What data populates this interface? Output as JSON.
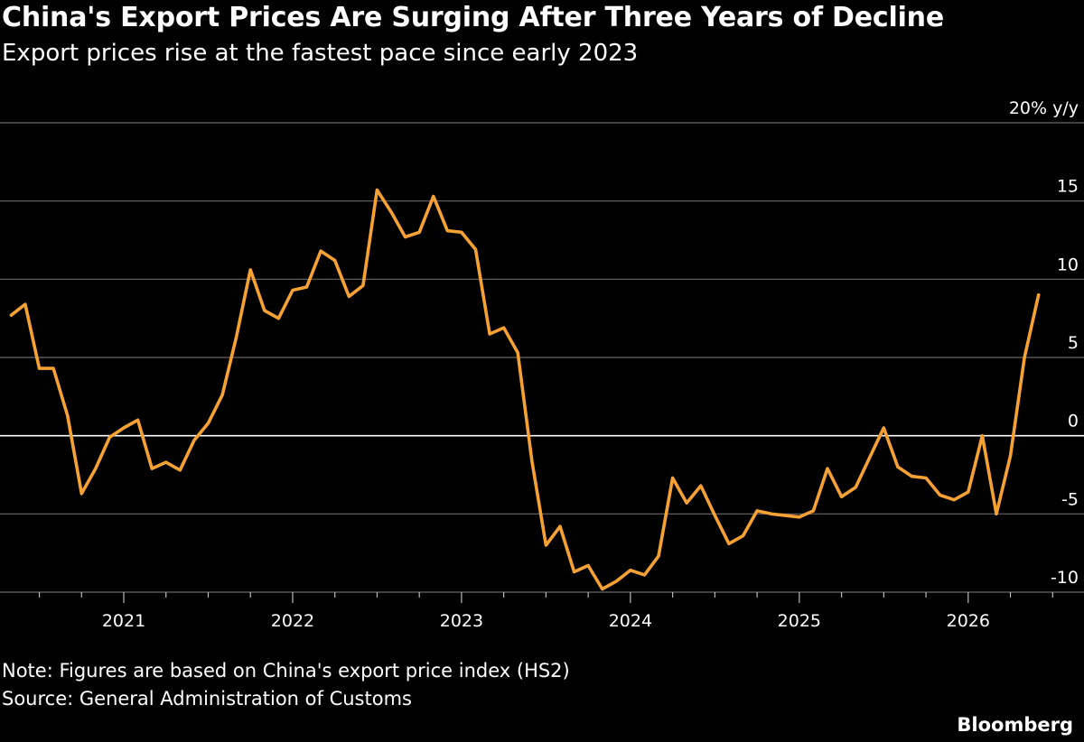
{
  "title": "China's Export Prices Are Surging After Three Years of Decline",
  "subtitle": "Export prices rise at the fastest pace since early 2023",
  "note": "Note: Figures are based on China's export price index (HS2)",
  "source": "Source: General Administration of Customs",
  "brand": "Bloomberg",
  "colors": {
    "line": "#F5A133",
    "grid": "#666666",
    "zero_line": "#ffffff",
    "background": "#000000"
  },
  "chart_data": {
    "type": "line",
    "title": "China's Export Prices Are Surging After Three Years of Decline",
    "xlabel": "",
    "ylabel": "20% y/y",
    "ylim": [
      -10,
      20
    ],
    "yticks": [
      {
        "value": 20,
        "label": "20% y/y"
      },
      {
        "value": 15,
        "label": "15"
      },
      {
        "value": 10,
        "label": "10"
      },
      {
        "value": 5,
        "label": "5"
      },
      {
        "value": 0,
        "label": "0"
      },
      {
        "value": -5,
        "label": "-5"
      },
      {
        "value": -10,
        "label": "-10"
      }
    ],
    "xticks": [
      "2021",
      "2022",
      "2023",
      "2024",
      "2025",
      "2026"
    ],
    "grid": true,
    "series": [
      {
        "x": [
          "2020-05",
          "2020-06",
          "2020-07",
          "2020-08",
          "2020-09",
          "2020-10",
          "2020-11",
          "2020-12",
          "2021-01",
          "2021-02",
          "2021-03",
          "2021-04",
          "2021-05",
          "2021-06",
          "2021-07",
          "2021-08",
          "2021-09",
          "2021-10",
          "2021-11",
          "2021-12",
          "2022-01",
          "2022-02",
          "2022-03",
          "2022-04",
          "2022-05",
          "2022-06",
          "2022-07",
          "2022-08",
          "2022-09",
          "2022-10",
          "2022-11",
          "2022-12",
          "2023-01",
          "2023-02",
          "2023-03",
          "2023-04",
          "2023-05",
          "2023-06",
          "2023-07",
          "2023-08",
          "2023-09",
          "2023-10",
          "2023-11",
          "2023-12",
          "2024-01",
          "2024-02",
          "2024-03",
          "2024-04",
          "2024-05",
          "2024-06",
          "2024-07",
          "2024-08",
          "2024-09",
          "2024-10",
          "2024-11",
          "2024-12",
          "2025-01",
          "2025-02",
          "2025-03",
          "2025-04",
          "2025-05",
          "2025-06",
          "2025-07",
          "2025-08",
          "2025-09",
          "2025-10",
          "2025-11",
          "2025-12",
          "2026-01",
          "2026-02",
          "2026-03",
          "2026-04",
          "2026-05",
          "2026-06"
        ],
        "values": [
          7.7,
          8.4,
          4.3,
          4.3,
          1.3,
          -3.7,
          -2.1,
          -0.1,
          0.5,
          1.0,
          -2.1,
          -1.7,
          -2.2,
          -0.3,
          0.8,
          2.6,
          6.3,
          10.6,
          8.0,
          7.5,
          9.3,
          9.5,
          11.8,
          11.2,
          8.9,
          9.6,
          15.7,
          14.3,
          12.7,
          13.0,
          15.3,
          13.1,
          13.0,
          11.9,
          6.5,
          6.9,
          5.3,
          -1.6,
          -7.0,
          -5.8,
          -8.7,
          -8.3,
          -9.8,
          -9.3,
          -8.6,
          -8.9,
          -7.7,
          -2.7,
          -4.3,
          -3.2,
          -5.1,
          -6.9,
          -6.4,
          -4.8,
          -5.0,
          -5.1,
          -5.2,
          -4.8,
          -2.1,
          -3.9,
          -3.3,
          -1.4,
          0.5,
          -2.0,
          -2.6,
          -2.7,
          -3.8,
          -4.1,
          -3.6,
          0.0,
          -5.0,
          -1.3,
          5.0,
          9.0
        ]
      }
    ]
  }
}
